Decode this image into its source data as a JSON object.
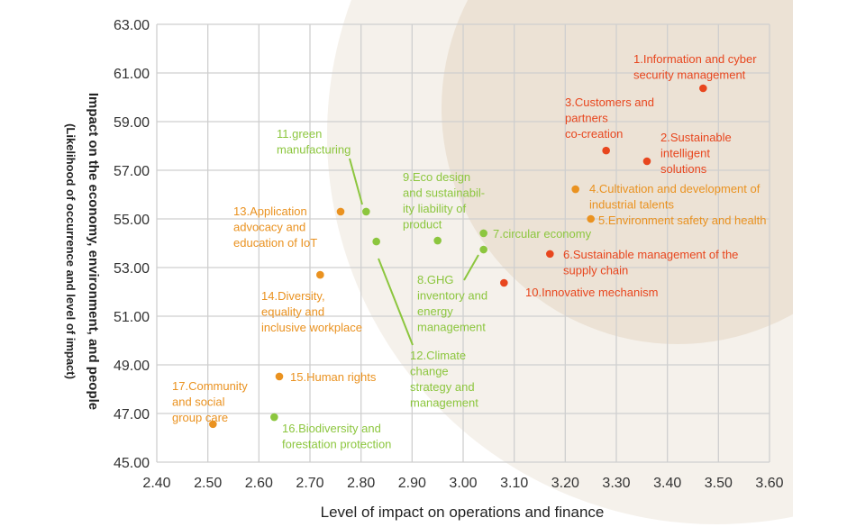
{
  "chart_data": {
    "type": "scatter",
    "title": "",
    "xlabel": "Level of impact on operations and finance",
    "ylabel": "Impact on the economy, environment, and people",
    "ylabel_sub": "(Likelihood of occurrence and level of impact)",
    "xlim": [
      2.4,
      3.6
    ],
    "ylim": [
      45.0,
      63.0
    ],
    "x_ticks": [
      "2.40",
      "2.50",
      "2.60",
      "2.70",
      "2.80",
      "2.90",
      "3.00",
      "3.10",
      "3.20",
      "3.30",
      "3.40",
      "3.50",
      "3.60"
    ],
    "y_ticks": [
      "45.00",
      "47.00",
      "49.00",
      "51.00",
      "53.00",
      "55.00",
      "57.00",
      "59.00",
      "61.00",
      "63.00"
    ],
    "grid": true,
    "colors": {
      "red": "#e8461e",
      "orange": "#ea9220",
      "green": "#8cc63e",
      "bg_outer": "#f5f1eb",
      "bg_inner": "#ece2d5",
      "grid": "#cfcfcf"
    },
    "points": [
      {
        "id": 1,
        "label": [
          "1.Information and cyber",
          "security management"
        ],
        "x": 3.47,
        "y": 60.37,
        "color": "red"
      },
      {
        "id": 2,
        "label": [
          "2.Sustainable",
          "intelligent",
          "solutions"
        ],
        "x": 3.36,
        "y": 57.37,
        "color": "red"
      },
      {
        "id": 3,
        "label": [
          "3.Customers and",
          "partners",
          "co-creation"
        ],
        "x": 3.28,
        "y": 57.81,
        "color": "red"
      },
      {
        "id": 4,
        "label": [
          "4.Cultivation and development of",
          "industrial talents"
        ],
        "x": 3.22,
        "y": 56.22,
        "color": "orange"
      },
      {
        "id": 5,
        "label": [
          "5.Environment safety and health"
        ],
        "x": 3.25,
        "y": 55.0,
        "color": "orange"
      },
      {
        "id": 6,
        "label": [
          "6.Sustainable management of the",
          "supply chain"
        ],
        "x": 3.17,
        "y": 53.56,
        "color": "red"
      },
      {
        "id": 7,
        "label": [
          "7.circular economy"
        ],
        "x": 3.04,
        "y": 54.41,
        "color": "green"
      },
      {
        "id": 8,
        "label": [
          "8.GHG",
          "inventory and",
          "energy",
          "management"
        ],
        "x": 3.04,
        "y": 53.74,
        "color": "green"
      },
      {
        "id": 9,
        "label": [
          "9.Eco design",
          "and sustainabil-",
          "ity liability of",
          "product"
        ],
        "x": 2.95,
        "y": 54.11,
        "color": "green"
      },
      {
        "id": 10,
        "label": [
          "10.Innovative mechanism"
        ],
        "x": 3.08,
        "y": 52.37,
        "color": "red"
      },
      {
        "id": 11,
        "label": [
          "11.green",
          "manufacturing"
        ],
        "x": 2.81,
        "y": 55.3,
        "color": "green"
      },
      {
        "id": 12,
        "label": [
          "12.Climate",
          "change",
          "strategy and",
          "management"
        ],
        "x": 2.83,
        "y": 54.07,
        "color": "green"
      },
      {
        "id": 13,
        "label": [
          "13.Application",
          "advocacy and",
          "education of IoT"
        ],
        "x": 2.76,
        "y": 55.3,
        "color": "orange"
      },
      {
        "id": 14,
        "label": [
          "14.Diversity,",
          "equality and",
          "inclusive workplace"
        ],
        "x": 2.72,
        "y": 52.7,
        "color": "orange"
      },
      {
        "id": 15,
        "label": [
          "15.Human rights"
        ],
        "x": 2.64,
        "y": 48.52,
        "color": "orange"
      },
      {
        "id": 16,
        "label": [
          "16.Biodiversity and",
          "forestation protection"
        ],
        "x": 2.63,
        "y": 46.85,
        "color": "green"
      },
      {
        "id": 17,
        "label": [
          "17.Community",
          "and social",
          "group care"
        ],
        "x": 2.51,
        "y": 46.56,
        "color": "orange"
      }
    ]
  }
}
